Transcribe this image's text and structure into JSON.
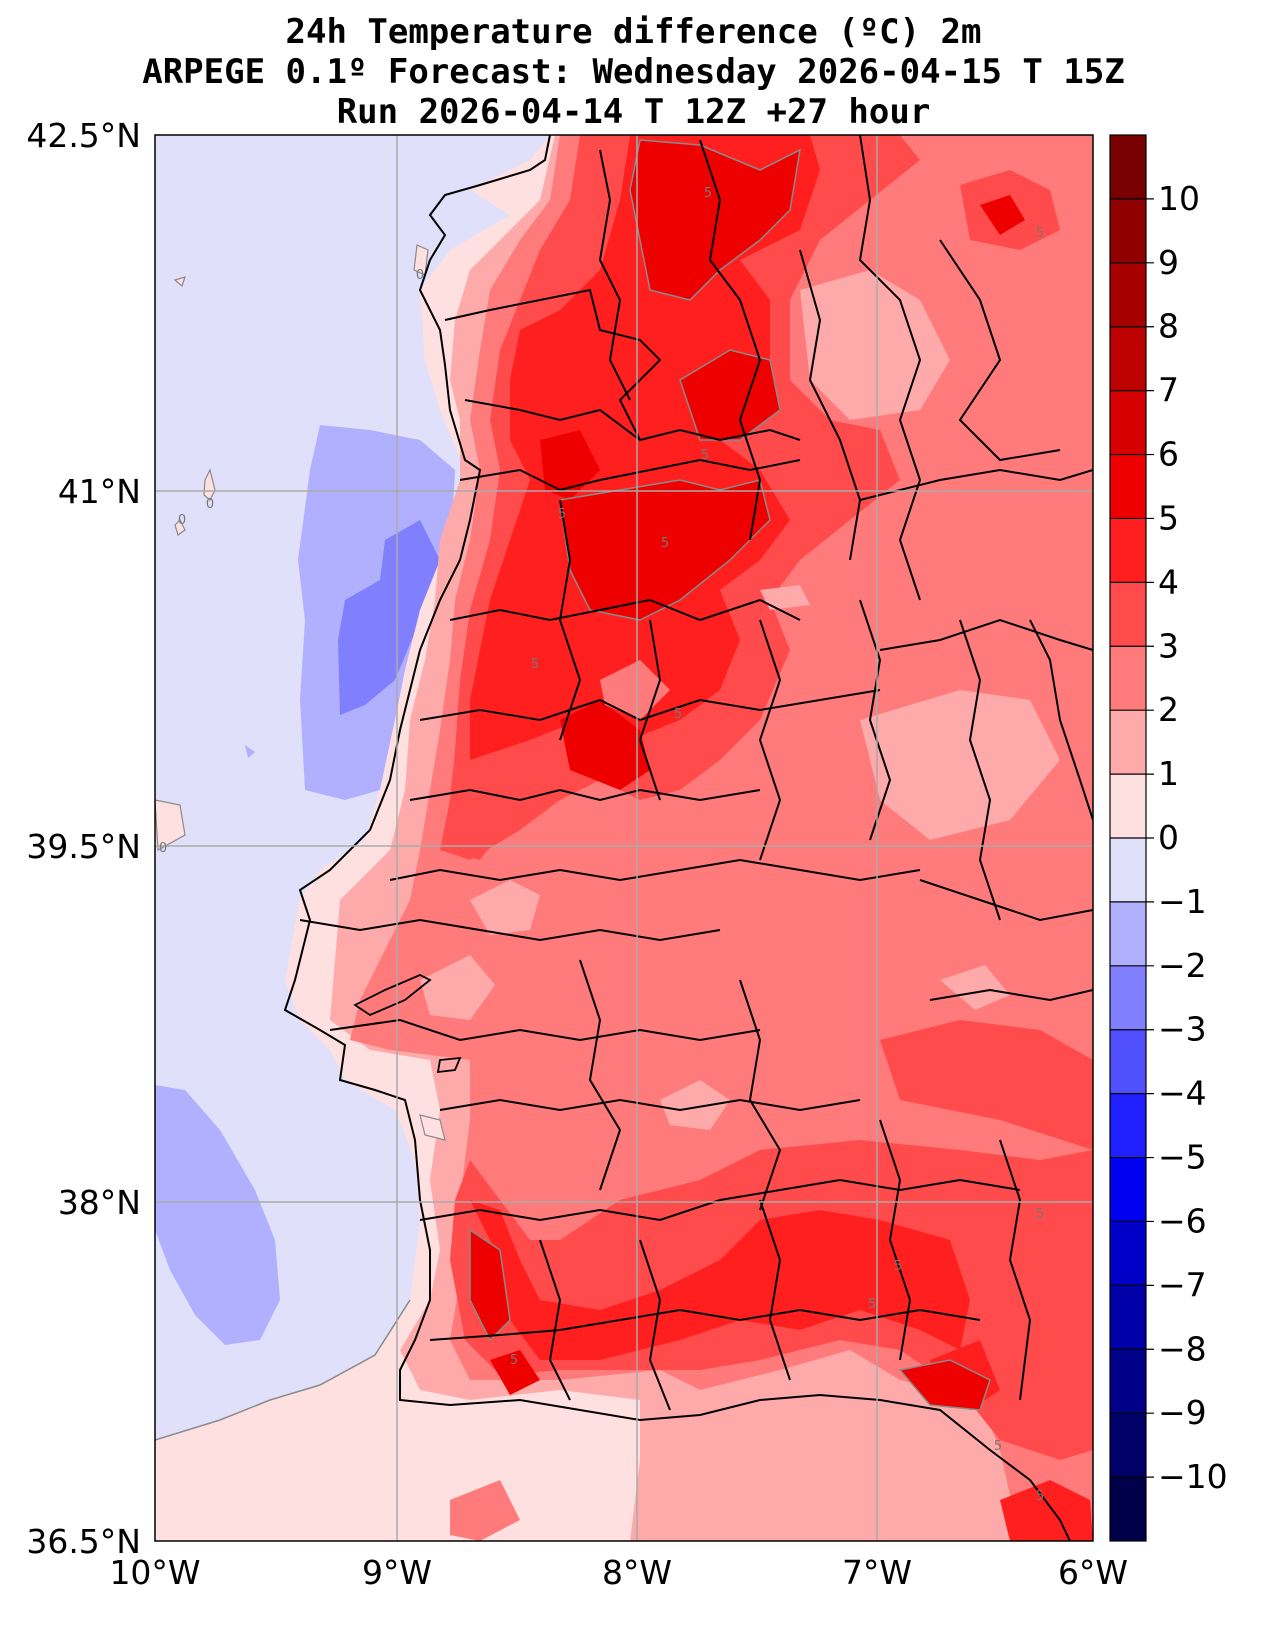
{
  "title": {
    "line1": "24h Temperature difference (ºC) 2m",
    "line2": "ARPEGE 0.1º Forecast: Wednesday 2026-04-15 T 15Z",
    "line3": "Run 2026-04-14 T 12Z +27 hour"
  },
  "map": {
    "lat_labels": [
      "42.5°N",
      "41°N",
      "39.5°N",
      "38°N",
      "36.5°N"
    ],
    "lon_labels": [
      "10°W",
      "9°W",
      "8°W",
      "7°W",
      "6°W"
    ],
    "contour_labels": [
      "0",
      "0",
      "0",
      "0",
      "5",
      "5",
      "5",
      "5",
      "5",
      "5",
      "5",
      "5",
      "5",
      "5",
      "5",
      "5",
      "5"
    ],
    "sea_color": "#e0e0fa",
    "land_base_color": "#ff9595"
  },
  "colorbar": {
    "ticks": [
      "10",
      "9",
      "8",
      "7",
      "6",
      "5",
      "4",
      "3",
      "2",
      "1",
      "0",
      "−1",
      "−2",
      "−3",
      "−4",
      "−5",
      "−6",
      "−7",
      "−8",
      "−9",
      "−10"
    ],
    "colors": [
      "#780000",
      "#8f0000",
      "#a60000",
      "#bd0000",
      "#d70000",
      "#ee0000",
      "#ff1f1f",
      "#ff4b4b",
      "#ff7b7b",
      "#ffaaaa",
      "#ffe0e0",
      "#e0e0fa",
      "#b0b0ff",
      "#8080ff",
      "#5050ff",
      "#2020ff",
      "#0000f0",
      "#0000c8",
      "#0000a8",
      "#000088",
      "#000068",
      "#00004a"
    ]
  }
}
